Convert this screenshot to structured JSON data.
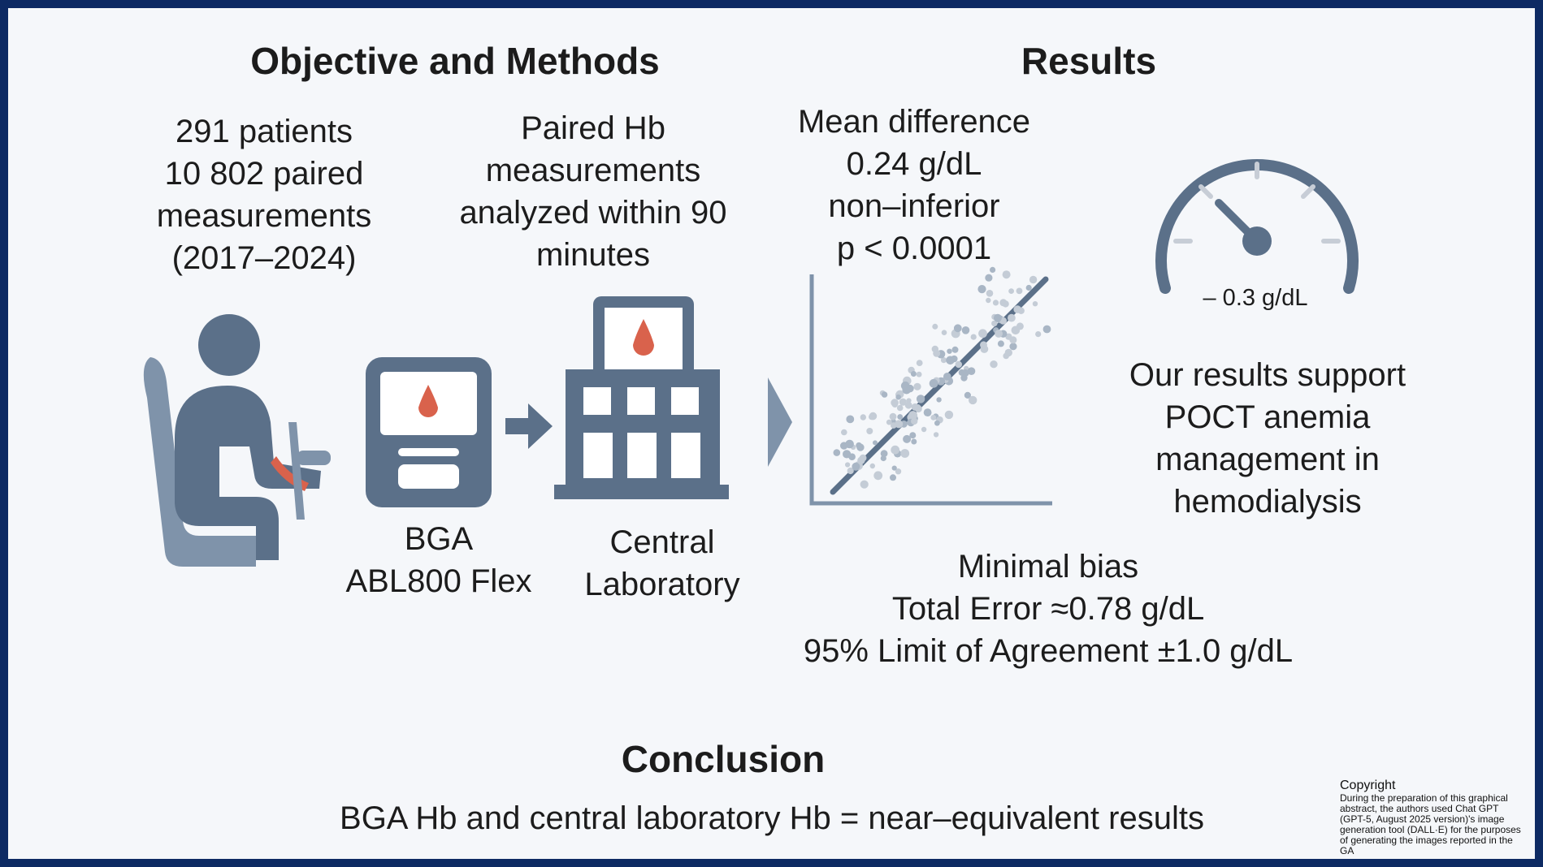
{
  "sections": {
    "methods_title": "Objective and Methods",
    "results_title": "Results",
    "conclusion_title": "Conclusion"
  },
  "methods": {
    "patients": [
      "291 patients",
      "10 802 paired",
      "measurements",
      "(2017–2024)"
    ],
    "paired": [
      "Paired Hb",
      "measurements",
      "analyzed within 90",
      "minutes"
    ],
    "device": [
      "BGA",
      "ABL800 Flex"
    ],
    "lab": [
      "Central",
      "Laboratory"
    ]
  },
  "results": {
    "mean_difference": [
      "Mean difference",
      "0.24 g/dL",
      "non–inferior",
      "p < 0.0001"
    ],
    "gauge_value": "– 0.3 g/dL",
    "support": [
      "Our results support",
      "POCT anemia",
      "management in",
      "hemodialysis"
    ],
    "bias": [
      "Minimal bias",
      "Total Error ≈0.78 g/dL",
      "95% Limit of Agreement ±1.0 g/dL"
    ]
  },
  "conclusion": {
    "text": "BGA Hb and central laboratory Hb = near–equivalent results"
  },
  "copyright": {
    "title": "Copyright",
    "text": "During the preparation of this graphical abstract, the authors used Chat GPT (GPT-5, August 2025 version)'s image generation tool (DALL·E) for the purposes of generating the images reported in the GA"
  },
  "icons": {
    "patient": "patient-in-dialysis-chair",
    "device": "blood-gas-analyzer",
    "lab": "laboratory-building",
    "chart": "scatter-plot",
    "gauge": "speedometer-gauge"
  },
  "colors": {
    "slate": "#5b7089",
    "slate_light": "#7f93aa",
    "blood": "#d9624c",
    "frame": "#0d2a63"
  }
}
